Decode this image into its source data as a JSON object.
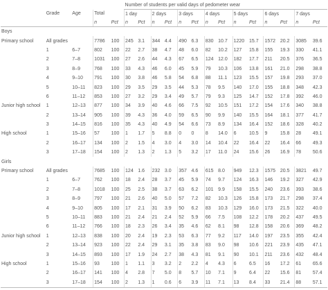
{
  "table": {
    "spanning_header": "Number of students per valid days of pedometer wear",
    "columns": [
      "Grade",
      "Age",
      "Total",
      "1 day",
      "2 days",
      "3 days",
      "4 days",
      "5 days",
      "6 days",
      "7 days"
    ],
    "subheaders": [
      "n",
      "Pct"
    ],
    "sections": [
      {
        "title": "Boys",
        "rows": [
          {
            "group": "Primary school",
            "grade": "All grades",
            "values": [
              "7786",
              "100",
              "245",
              "3.1",
              "344",
              "4.4",
              "490",
              "6.3",
              "830",
              "10.7",
              "1220",
              "15.7",
              "1572",
              "20.2",
              "3085",
              "39.6"
            ]
          },
          {
            "grade": "1",
            "age": "6–7",
            "values": [
              "802",
              "100",
              "22",
              "2.7",
              "38",
              "4.7",
              "48",
              "6.0",
              "82",
              "10.2",
              "127",
              "15.8",
              "155",
              "19.3",
              "330",
              "41.1"
            ]
          },
          {
            "grade": "2",
            "age": "7–8",
            "values": [
              "1031",
              "100",
              "27",
              "2.6",
              "44",
              "4.3",
              "67",
              "6.5",
              "124",
              "12.0",
              "182",
              "17.7",
              "211",
              "20.5",
              "376",
              "36.5"
            ]
          },
          {
            "grade": "3",
            "age": "8–9",
            "values": [
              "768",
              "100",
              "33",
              "4.3",
              "46",
              "6.0",
              "45",
              "5.9",
              "79",
              "10.3",
              "106",
              "13.8",
              "161",
              "21.0",
              "298",
              "38.8"
            ]
          },
          {
            "grade": "4",
            "age": "9–10",
            "values": [
              "791",
              "100",
              "30",
              "3.8",
              "46",
              "5.8",
              "54",
              "6.8",
              "88",
              "11.1",
              "123",
              "15.5",
              "157",
              "19.8",
              "293",
              "37.0"
            ]
          },
          {
            "grade": "5",
            "age": "10–11",
            "values": [
              "823",
              "100",
              "29",
              "3.5",
              "29",
              "3.5",
              "44",
              "5.3",
              "78",
              "9.5",
              "140",
              "17.0",
              "155",
              "18.8",
              "348",
              "42.3"
            ]
          },
          {
            "grade": "6",
            "age": "11–12",
            "values": [
              "853",
              "100",
              "27",
              "3.2",
              "29",
              "3.4",
              "49",
              "5.7",
              "79",
              "9.3",
              "125",
              "14.7",
              "152",
              "17.8",
              "392",
              "46.0"
            ]
          },
          {
            "group": "Junior high school",
            "grade": "1",
            "age": "12–13",
            "values": [
              "877",
              "100",
              "34",
              "3.9",
              "40",
              "4.6",
              "66",
              "7.5",
              "92",
              "10.5",
              "151",
              "17.2",
              "154",
              "17.6",
              "340",
              "38.8"
            ]
          },
          {
            "grade": "2",
            "age": "13–14",
            "values": [
              "905",
              "100",
              "39",
              "4.3",
              "36",
              "4.0",
              "59",
              "6.5",
              "90",
              "9.9",
              "140",
              "15.5",
              "164",
              "18.1",
              "377",
              "41.7"
            ]
          },
          {
            "grade": "3",
            "age": "14–15",
            "values": [
              "816",
              "100",
              "35",
              "4.3",
              "40",
              "4.9",
              "54",
              "6.6",
              "73",
              "8.9",
              "134",
              "16.4",
              "152",
              "18.6",
              "328",
              "40.2"
            ]
          },
          {
            "group": "High school",
            "grade": "1",
            "age": "15–16",
            "values": [
              "57",
              "100",
              "1",
              "1.7",
              "5",
              "8.8",
              "0",
              "0",
              "8",
              "14.0",
              "6",
              "10.5",
              "9",
              "15.8",
              "28",
              "49.1"
            ]
          },
          {
            "grade": "2",
            "age": "16–17",
            "values": [
              "134",
              "100",
              "2",
              "1.5",
              "4",
              "3.0",
              "4",
              "3.0",
              "14",
              "10.4",
              "22",
              "16.4",
              "22",
              "16.4",
              "66",
              "49.3"
            ]
          },
          {
            "grade": "3",
            "age": "17–18",
            "values": [
              "154",
              "100",
              "2",
              "1.3",
              "2",
              "1.3",
              "5",
              "3.2",
              "17",
              "11.0",
              "24",
              "15.6",
              "26",
              "16.9",
              "78",
              "50.6"
            ]
          }
        ]
      },
      {
        "title": "Girls",
        "rows": [
          {
            "group": "Primary school",
            "grade": "All grades",
            "values": [
              "7685",
              "100",
              "124",
              "1.6",
              "232",
              "3.0",
              "357",
              "4.6",
              "615",
              "8.0",
              "949",
              "12.3",
              "1575",
              "20.5",
              "3821",
              "49.7"
            ]
          },
          {
            "grade": "1",
            "age": "6–7",
            "values": [
              "762",
              "100",
              "18",
              "2.4",
              "28",
              "3.7",
              "45",
              "5.9",
              "74",
              "9.7",
              "124",
              "16.3",
              "146",
              "19.2",
              "327",
              "42.9"
            ]
          },
          {
            "grade": "2",
            "age": "7–8",
            "values": [
              "1018",
              "100",
              "25",
              "2.5",
              "38",
              "3.7",
              "63",
              "6.2",
              "101",
              "9.9",
              "158",
              "15.5",
              "240",
              "23.6",
              "393",
              "38.6"
            ]
          },
          {
            "grade": "3",
            "age": "8–9",
            "values": [
              "797",
              "100",
              "21",
              "2.6",
              "40",
              "5.0",
              "57",
              "7.2",
              "82",
              "10.3",
              "126",
              "15.8",
              "173",
              "21.7",
              "298",
              "37.4"
            ]
          },
          {
            "grade": "4",
            "age": "9–10",
            "values": [
              "805",
              "100",
              "17",
              "2.1",
              "31",
              "3.9",
              "50",
              "6.2",
              "83",
              "10.3",
              "129",
              "16.0",
              "173",
              "21.5",
              "322",
              "40.0"
            ]
          },
          {
            "grade": "5",
            "age": "10–11",
            "values": [
              "883",
              "100",
              "21",
              "2.4",
              "21",
              "2.4",
              "52",
              "5.9",
              "66",
              "7.5",
              "108",
              "12.2",
              "178",
              "20.2",
              "437",
              "49.5"
            ]
          },
          {
            "grade": "6",
            "age": "11–12",
            "values": [
              "766",
              "100",
              "18",
              "2.3",
              "26",
              "3.4",
              "35",
              "4.6",
              "62",
              "8.1",
              "98",
              "12.8",
              "158",
              "20.6",
              "369",
              "48.2"
            ]
          },
          {
            "group": "Junior high school",
            "grade": "1",
            "age": "12–13",
            "values": [
              "838",
              "100",
              "20",
              "2.4",
              "19",
              "2.3",
              "53",
              "6.3",
              "77",
              "9.2",
              "117",
              "14.0",
              "197",
              "23.5",
              "355",
              "42.4"
            ]
          },
          {
            "grade": "2",
            "age": "13–14",
            "values": [
              "923",
              "100",
              "22",
              "2.4",
              "29",
              "3.1",
              "35",
              "3.8",
              "83",
              "9.0",
              "98",
              "10.6",
              "221",
              "23.9",
              "435",
              "47.1"
            ]
          },
          {
            "grade": "3",
            "age": "14–15",
            "values": [
              "893",
              "100",
              "17",
              "1.9",
              "24",
              "2.7",
              "38",
              "4.3",
              "81",
              "9.1",
              "90",
              "10.1",
              "211",
              "23.6",
              "432",
              "48.4"
            ]
          },
          {
            "group": "High school",
            "grade": "1",
            "age": "15–16",
            "values": [
              "93",
              "100",
              "1",
              "1.1",
              "3",
              "3.2",
              "2",
              "2.2",
              "4",
              "4.3",
              "6",
              "6.5",
              "16",
              "17.2",
              "61",
              "65.6"
            ]
          },
          {
            "grade": "2",
            "age": "16–17",
            "values": [
              "141",
              "100",
              "4",
              "2.8",
              "7",
              "5.0",
              "8",
              "5.7",
              "10",
              "7.1",
              "9",
              "6.4",
              "22",
              "15.6",
              "81",
              "57.4"
            ]
          },
          {
            "grade": "3",
            "age": "17–18",
            "values": [
              "154",
              "100",
              "2",
              "1.3",
              "1",
              "0.6",
              "6",
              "3.9",
              "11",
              "7.1",
              "13",
              "8.4",
              "33",
              "21.4",
              "88",
              "57.1"
            ]
          }
        ]
      }
    ]
  }
}
